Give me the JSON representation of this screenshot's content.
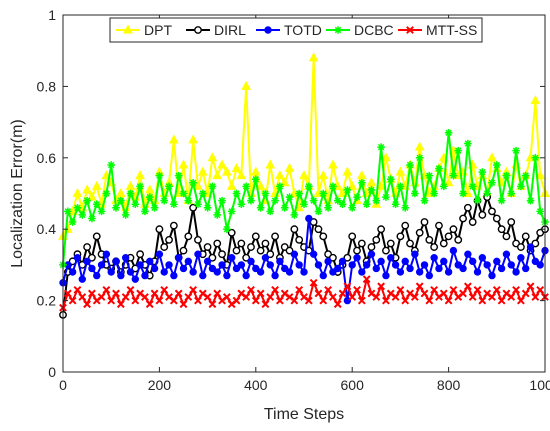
{
  "chart_data": {
    "type": "line",
    "title": "",
    "xlabel": "Time Steps",
    "ylabel": "Localization Error(m)",
    "xlim": [
      0,
      1000
    ],
    "ylim": [
      0,
      1
    ],
    "xticks": [
      0,
      200,
      400,
      600,
      800,
      1000
    ],
    "yticks": [
      0,
      0.2,
      0.4,
      0.6,
      0.8,
      1
    ],
    "grid": false,
    "legend": "top, horizontal",
    "x": [
      0,
      10,
      20,
      30,
      40,
      50,
      60,
      70,
      80,
      90,
      100,
      110,
      120,
      130,
      140,
      150,
      160,
      170,
      180,
      190,
      200,
      210,
      220,
      230,
      240,
      250,
      260,
      270,
      280,
      290,
      300,
      310,
      320,
      330,
      340,
      350,
      360,
      370,
      380,
      390,
      400,
      410,
      420,
      430,
      440,
      450,
      460,
      470,
      480,
      490,
      500,
      510,
      520,
      530,
      540,
      550,
      560,
      570,
      580,
      590,
      600,
      610,
      620,
      630,
      640,
      650,
      660,
      670,
      680,
      690,
      700,
      710,
      720,
      730,
      740,
      750,
      760,
      770,
      780,
      790,
      800,
      810,
      820,
      830,
      840,
      850,
      860,
      870,
      880,
      890,
      900,
      910,
      920,
      930,
      940,
      950,
      960,
      970,
      980,
      990,
      1000
    ],
    "series": [
      {
        "name": "DPT",
        "color": "#ffff00",
        "marker": "triangle-up",
        "values": [
          0.38,
          0.4,
          0.45,
          0.5,
          0.46,
          0.51,
          0.49,
          0.52,
          0.47,
          0.55,
          0.53,
          0.48,
          0.5,
          0.46,
          0.52,
          0.49,
          0.55,
          0.47,
          0.51,
          0.48,
          0.56,
          0.5,
          0.53,
          0.65,
          0.5,
          0.58,
          0.48,
          0.65,
          0.52,
          0.56,
          0.5,
          0.6,
          0.55,
          0.58,
          0.56,
          0.52,
          0.57,
          0.55,
          0.8,
          0.5,
          0.56,
          0.52,
          0.48,
          0.58,
          0.5,
          0.55,
          0.53,
          0.57,
          0.5,
          0.46,
          0.55,
          0.52,
          0.88,
          0.5,
          0.55,
          0.48,
          0.58,
          0.52,
          0.5,
          0.56,
          0.52,
          0.48,
          0.55,
          0.5,
          0.53,
          0.47,
          0.52,
          0.6,
          0.54,
          0.5,
          0.56,
          0.52,
          0.58,
          0.53,
          0.63,
          0.55,
          0.5,
          0.52,
          0.57,
          0.6,
          0.53,
          0.62,
          0.55,
          0.56,
          0.5,
          0.58,
          0.52,
          0.55,
          0.5,
          0.6,
          0.57,
          0.53,
          0.56,
          0.5,
          0.58,
          0.52,
          0.55,
          0.6,
          0.76,
          0.55,
          0.5
        ]
      },
      {
        "name": "DIRL",
        "color": "#000000",
        "marker": "circle",
        "values": [
          0.16,
          0.28,
          0.31,
          0.33,
          0.3,
          0.35,
          0.32,
          0.38,
          0.33,
          0.3,
          0.29,
          0.31,
          0.28,
          0.3,
          0.32,
          0.29,
          0.33,
          0.3,
          0.27,
          0.31,
          0.4,
          0.35,
          0.37,
          0.41,
          0.32,
          0.34,
          0.38,
          0.46,
          0.37,
          0.33,
          0.35,
          0.32,
          0.36,
          0.33,
          0.3,
          0.39,
          0.34,
          0.36,
          0.32,
          0.35,
          0.38,
          0.34,
          0.36,
          0.33,
          0.38,
          0.32,
          0.35,
          0.34,
          0.4,
          0.37,
          0.35,
          0.34,
          0.42,
          0.4,
          0.38,
          0.33,
          0.32,
          0.28,
          0.3,
          0.32,
          0.38,
          0.34,
          0.36,
          0.31,
          0.35,
          0.37,
          0.4,
          0.34,
          0.36,
          0.32,
          0.38,
          0.41,
          0.36,
          0.34,
          0.39,
          0.42,
          0.37,
          0.35,
          0.41,
          0.36,
          0.38,
          0.4,
          0.37,
          0.43,
          0.46,
          0.42,
          0.48,
          0.44,
          0.49,
          0.45,
          0.43,
          0.4,
          0.38,
          0.42,
          0.36,
          0.35,
          0.38,
          0.34,
          0.36,
          0.39,
          0.4
        ]
      },
      {
        "name": "TOTD",
        "color": "#0000ff",
        "marker": "circle",
        "values": [
          0.25,
          0.3,
          0.28,
          0.32,
          0.26,
          0.31,
          0.29,
          0.27,
          0.3,
          0.33,
          0.28,
          0.31,
          0.27,
          0.32,
          0.28,
          0.26,
          0.3,
          0.27,
          0.31,
          0.29,
          0.33,
          0.28,
          0.3,
          0.27,
          0.32,
          0.29,
          0.31,
          0.28,
          0.33,
          0.27,
          0.31,
          0.29,
          0.28,
          0.3,
          0.27,
          0.32,
          0.29,
          0.3,
          0.27,
          0.31,
          0.29,
          0.28,
          0.32,
          0.3,
          0.27,
          0.31,
          0.29,
          0.28,
          0.33,
          0.3,
          0.28,
          0.43,
          0.33,
          0.3,
          0.27,
          0.31,
          0.28,
          0.29,
          0.31,
          0.2,
          0.3,
          0.32,
          0.28,
          0.3,
          0.33,
          0.29,
          0.31,
          0.27,
          0.32,
          0.3,
          0.28,
          0.31,
          0.29,
          0.33,
          0.28,
          0.3,
          0.27,
          0.32,
          0.29,
          0.31,
          0.28,
          0.34,
          0.3,
          0.29,
          0.33,
          0.31,
          0.28,
          0.32,
          0.3,
          0.27,
          0.31,
          0.29,
          0.33,
          0.3,
          0.28,
          0.32,
          0.29,
          0.35,
          0.31,
          0.3,
          0.34
        ]
      },
      {
        "name": "DCBC",
        "color": "#00ff00",
        "marker": "asterisk",
        "values": [
          0.3,
          0.45,
          0.42,
          0.46,
          0.44,
          0.48,
          0.43,
          0.47,
          0.45,
          0.5,
          0.58,
          0.46,
          0.48,
          0.44,
          0.5,
          0.47,
          0.52,
          0.45,
          0.49,
          0.46,
          0.55,
          0.48,
          0.52,
          0.47,
          0.55,
          0.5,
          0.48,
          0.53,
          0.47,
          0.5,
          0.46,
          0.52,
          0.44,
          0.48,
          0.4,
          0.45,
          0.5,
          0.47,
          0.52,
          0.48,
          0.54,
          0.46,
          0.5,
          0.45,
          0.48,
          0.52,
          0.46,
          0.49,
          0.44,
          0.5,
          0.47,
          0.52,
          0.48,
          0.45,
          0.5,
          0.46,
          0.52,
          0.48,
          0.47,
          0.51,
          0.46,
          0.49,
          0.53,
          0.47,
          0.51,
          0.48,
          0.63,
          0.49,
          0.54,
          0.47,
          0.52,
          0.46,
          0.58,
          0.5,
          0.6,
          0.48,
          0.55,
          0.5,
          0.57,
          0.52,
          0.67,
          0.55,
          0.62,
          0.5,
          0.64,
          0.52,
          0.48,
          0.56,
          0.5,
          0.53,
          0.58,
          0.48,
          0.55,
          0.5,
          0.62,
          0.52,
          0.55,
          0.48,
          0.6,
          0.45,
          0.42
        ]
      },
      {
        "name": "MTT-SS",
        "color": "#ff0000",
        "marker": "x",
        "values": [
          0.18,
          0.22,
          0.2,
          0.23,
          0.21,
          0.19,
          0.22,
          0.2,
          0.21,
          0.23,
          0.2,
          0.22,
          0.19,
          0.21,
          0.23,
          0.2,
          0.22,
          0.21,
          0.19,
          0.22,
          0.2,
          0.23,
          0.21,
          0.2,
          0.22,
          0.19,
          0.21,
          0.23,
          0.2,
          0.22,
          0.21,
          0.19,
          0.22,
          0.2,
          0.21,
          0.19,
          0.2,
          0.22,
          0.21,
          0.23,
          0.2,
          0.22,
          0.19,
          0.21,
          0.23,
          0.2,
          0.22,
          0.21,
          0.2,
          0.23,
          0.21,
          0.2,
          0.25,
          0.22,
          0.2,
          0.23,
          0.21,
          0.19,
          0.22,
          0.24,
          0.21,
          0.23,
          0.2,
          0.26,
          0.22,
          0.21,
          0.24,
          0.2,
          0.22,
          0.21,
          0.23,
          0.2,
          0.22,
          0.21,
          0.24,
          0.22,
          0.2,
          0.23,
          0.21,
          0.22,
          0.2,
          0.23,
          0.21,
          0.22,
          0.24,
          0.21,
          0.23,
          0.2,
          0.22,
          0.21,
          0.23,
          0.2,
          0.22,
          0.21,
          0.23,
          0.2,
          0.22,
          0.24,
          0.21,
          0.23,
          0.21
        ]
      }
    ]
  }
}
